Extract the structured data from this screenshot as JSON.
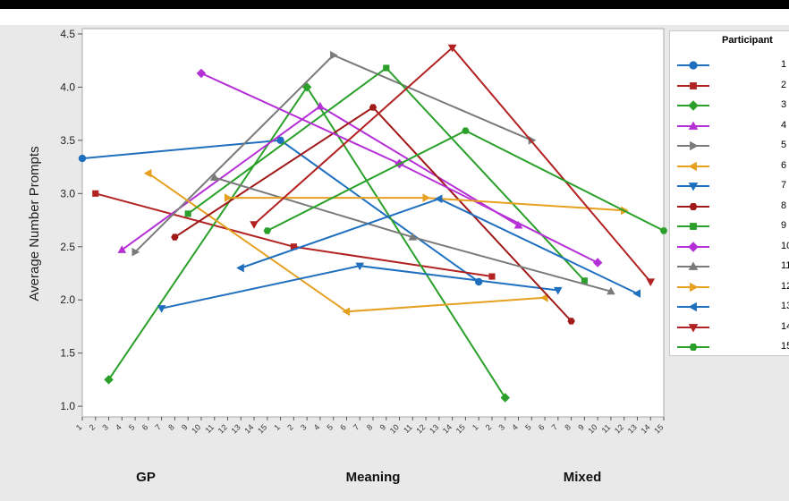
{
  "chart_data": {
    "type": "line",
    "title": "",
    "ylabel": "Average Number Prompts",
    "xlabel": "",
    "ylim": [
      0.9,
      4.55
    ],
    "yticks": [
      1.0,
      1.5,
      2.0,
      2.5,
      3.0,
      3.5,
      4.0,
      4.5
    ],
    "ytick_labels": [
      "1.0",
      "1.5",
      "2.0",
      "2.5",
      "3.0",
      "3.5",
      "4.0",
      "4.5"
    ],
    "groups": [
      "GP",
      "Meaning",
      "Mixed"
    ],
    "x_tick_labels": [
      "1",
      "2",
      "3",
      "4",
      "5",
      "6",
      "7",
      "8",
      "9",
      "10",
      "11",
      "12",
      "13",
      "14",
      "15"
    ],
    "legend_title": "Participant",
    "grid": false,
    "legend_position": "right",
    "series": [
      {
        "name": "1",
        "color": "#1f6fbf",
        "marker": "circle",
        "values": [
          3.33,
          3.5,
          2.17
        ]
      },
      {
        "name": "2",
        "color": "#b22222",
        "marker": "square",
        "values": [
          3.0,
          2.5,
          2.22
        ]
      },
      {
        "name": "3",
        "color": "#2aa02a",
        "marker": "diamond",
        "values": [
          1.25,
          4.0,
          1.08
        ]
      },
      {
        "name": "4",
        "color": "#b52fd6",
        "marker": "triangle-up",
        "values": [
          2.47,
          3.82,
          2.7
        ]
      },
      {
        "name": "5",
        "color": "#7a7a7a",
        "marker": "triangle-right",
        "values": [
          2.45,
          4.3,
          3.5
        ]
      },
      {
        "name": "6",
        "color": "#e6a020",
        "marker": "triangle-left",
        "values": [
          3.19,
          1.89,
          2.02
        ]
      },
      {
        "name": "7",
        "color": "#1f6fbf",
        "marker": "triangle-down",
        "values": [
          1.92,
          2.32,
          2.09
        ]
      },
      {
        "name": "8",
        "color": "#a01818",
        "marker": "hexagon",
        "values": [
          2.59,
          3.81,
          1.8
        ]
      },
      {
        "name": "9",
        "color": "#2aa02a",
        "marker": "square",
        "values": [
          2.81,
          4.18,
          2.18
        ]
      },
      {
        "name": "10",
        "color": "#b52fd6",
        "marker": "diamond",
        "values": [
          4.13,
          3.28,
          2.35
        ]
      },
      {
        "name": "11",
        "color": "#7a7a7a",
        "marker": "triangle-up",
        "values": [
          3.15,
          2.59,
          2.08
        ]
      },
      {
        "name": "12",
        "color": "#e6a020",
        "marker": "triangle-right",
        "values": [
          2.96,
          2.96,
          2.84
        ]
      },
      {
        "name": "13",
        "color": "#1f6fbf",
        "marker": "triangle-left",
        "values": [
          2.3,
          2.95,
          2.06
        ]
      },
      {
        "name": "14",
        "color": "#b22222",
        "marker": "triangle-down",
        "values": [
          2.71,
          4.37,
          2.17
        ]
      },
      {
        "name": "15",
        "color": "#2aa02a",
        "marker": "hexagon",
        "values": [
          2.65,
          3.59,
          2.65
        ]
      }
    ]
  }
}
